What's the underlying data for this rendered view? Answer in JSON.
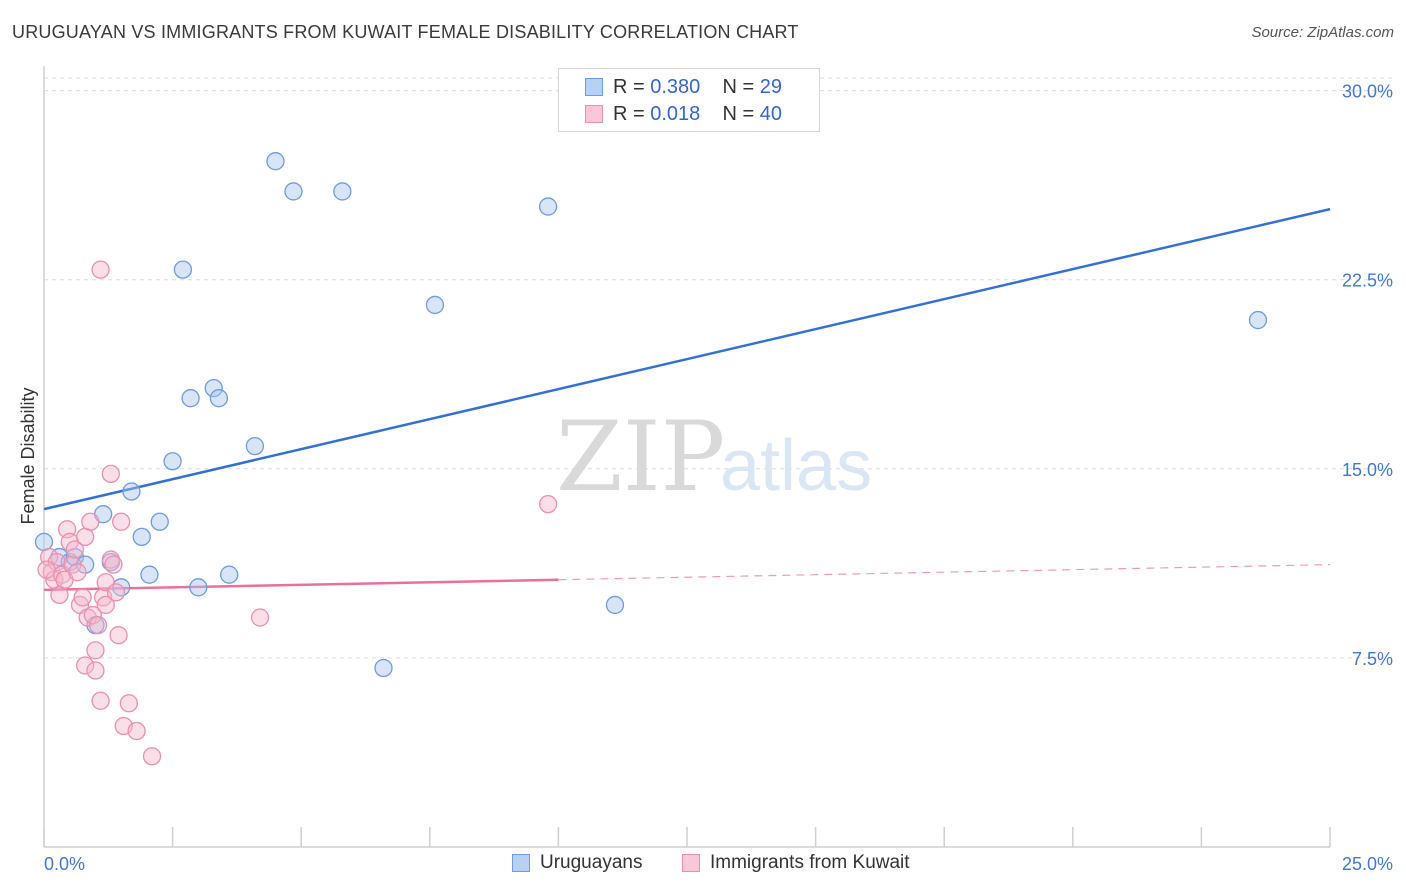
{
  "title": "URUGUAYAN VS IMMIGRANTS FROM KUWAIT FEMALE DISABILITY CORRELATION CHART",
  "source": "Source: ZipAtlas.com",
  "legend": {
    "row1": {
      "r_label": "R =",
      "r_value": "0.380",
      "n_label": "N =",
      "n_value": "29"
    },
    "row2": {
      "r_label": "R =",
      "r_value": "0.018",
      "n_label": "N =",
      "n_value": "40"
    }
  },
  "bottom_legend": {
    "series1": "Uruguayans",
    "series2": "Immigrants from Kuwait"
  },
  "watermark": {
    "zip": "ZIP",
    "atlas": "atlas"
  },
  "colors": {
    "blue": "#3370d4",
    "blue_fill": "#a9c6ee",
    "pink": "#e8709a",
    "pink_fill": "#f5b8cc"
  },
  "chart_data": {
    "type": "scatter",
    "title": "URUGUAYAN VS IMMIGRANTS FROM KUWAIT FEMALE DISABILITY CORRELATION CHART",
    "xlabel": "",
    "ylabel": "Female Disability",
    "xlim": [
      0,
      25
    ],
    "ylim": [
      0,
      30.5
    ],
    "x_tick_labels": [
      "0.0%",
      "25.0%"
    ],
    "y_ticks": [
      7.5,
      15.0,
      22.5,
      30.0
    ],
    "y_tick_labels": [
      "7.5%",
      "15.0%",
      "22.5%",
      "30.0%"
    ],
    "series": [
      {
        "name": "Uruguayans",
        "r": 0.38,
        "n": 29,
        "trend": {
          "x": [
            0,
            25
          ],
          "y": [
            13.4,
            25.3
          ],
          "dashed_from": null
        },
        "points": [
          {
            "x": 0.0,
            "y": 12.1
          },
          {
            "x": 0.3,
            "y": 11.5
          },
          {
            "x": 0.5,
            "y": 11.3
          },
          {
            "x": 0.6,
            "y": 11.5
          },
          {
            "x": 0.8,
            "y": 11.2
          },
          {
            "x": 1.0,
            "y": 8.8
          },
          {
            "x": 1.15,
            "y": 13.2
          },
          {
            "x": 1.3,
            "y": 11.3
          },
          {
            "x": 1.5,
            "y": 10.3
          },
          {
            "x": 1.7,
            "y": 14.1
          },
          {
            "x": 1.9,
            "y": 12.3
          },
          {
            "x": 2.05,
            "y": 10.8
          },
          {
            "x": 2.25,
            "y": 12.9
          },
          {
            "x": 2.5,
            "y": 15.3
          },
          {
            "x": 2.7,
            "y": 22.9
          },
          {
            "x": 2.85,
            "y": 17.8
          },
          {
            "x": 3.0,
            "y": 10.3
          },
          {
            "x": 3.3,
            "y": 18.2
          },
          {
            "x": 3.4,
            "y": 17.8
          },
          {
            "x": 3.6,
            "y": 10.8
          },
          {
            "x": 4.1,
            "y": 15.9
          },
          {
            "x": 4.5,
            "y": 27.2
          },
          {
            "x": 4.85,
            "y": 26.0
          },
          {
            "x": 5.8,
            "y": 26.0
          },
          {
            "x": 6.6,
            "y": 7.1
          },
          {
            "x": 7.6,
            "y": 21.5
          },
          {
            "x": 9.8,
            "y": 25.4
          },
          {
            "x": 11.1,
            "y": 9.6
          },
          {
            "x": 23.6,
            "y": 20.9
          }
        ]
      },
      {
        "name": "Immigrants from Kuwait",
        "r": 0.018,
        "n": 40,
        "trend": {
          "x": [
            0,
            25
          ],
          "y": [
            10.2,
            11.2
          ],
          "dashed_from": 10.0
        },
        "points": [
          {
            "x": 0.1,
            "y": 11.5
          },
          {
            "x": 0.15,
            "y": 10.9
          },
          {
            "x": 0.2,
            "y": 10.6
          },
          {
            "x": 0.25,
            "y": 11.3
          },
          {
            "x": 0.3,
            "y": 10.0
          },
          {
            "x": 0.35,
            "y": 10.8
          },
          {
            "x": 0.4,
            "y": 10.6
          },
          {
            "x": 0.45,
            "y": 12.6
          },
          {
            "x": 0.5,
            "y": 12.1
          },
          {
            "x": 0.55,
            "y": 11.2
          },
          {
            "x": 0.6,
            "y": 11.8
          },
          {
            "x": 0.65,
            "y": 10.9
          },
          {
            "x": 0.7,
            "y": 9.6
          },
          {
            "x": 0.75,
            "y": 9.9
          },
          {
            "x": 0.8,
            "y": 12.3
          },
          {
            "x": 0.85,
            "y": 9.1
          },
          {
            "x": 0.8,
            "y": 7.2
          },
          {
            "x": 0.9,
            "y": 12.9
          },
          {
            "x": 0.95,
            "y": 9.2
          },
          {
            "x": 1.0,
            "y": 7.0
          },
          {
            "x": 1.0,
            "y": 7.8
          },
          {
            "x": 1.05,
            "y": 8.8
          },
          {
            "x": 1.1,
            "y": 5.8
          },
          {
            "x": 1.15,
            "y": 9.9
          },
          {
            "x": 1.2,
            "y": 9.6
          },
          {
            "x": 1.2,
            "y": 10.5
          },
          {
            "x": 1.3,
            "y": 11.4
          },
          {
            "x": 1.3,
            "y": 14.8
          },
          {
            "x": 1.35,
            "y": 11.2
          },
          {
            "x": 1.4,
            "y": 10.1
          },
          {
            "x": 1.45,
            "y": 8.4
          },
          {
            "x": 1.5,
            "y": 12.9
          },
          {
            "x": 1.55,
            "y": 4.8
          },
          {
            "x": 1.65,
            "y": 5.7
          },
          {
            "x": 1.8,
            "y": 4.6
          },
          {
            "x": 2.1,
            "y": 3.6
          },
          {
            "x": 1.1,
            "y": 22.9
          },
          {
            "x": 4.2,
            "y": 9.1
          },
          {
            "x": 9.8,
            "y": 13.6
          },
          {
            "x": 0.05,
            "y": 11.0
          }
        ]
      }
    ]
  }
}
